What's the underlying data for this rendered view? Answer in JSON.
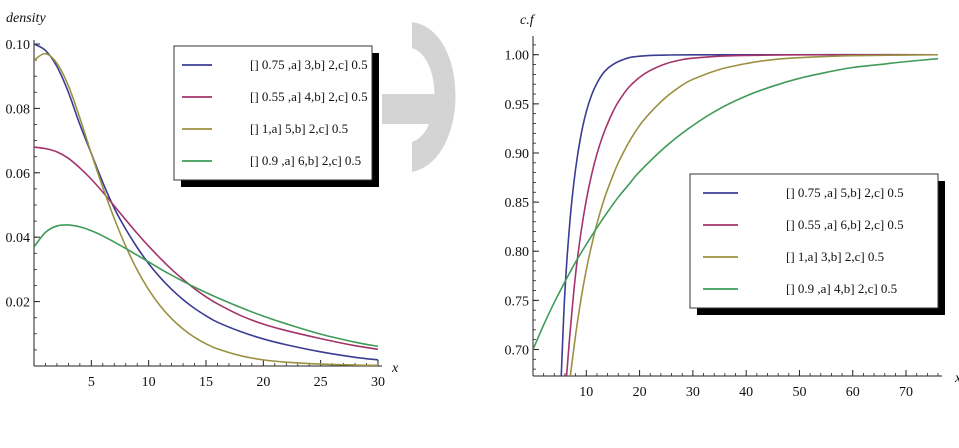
{
  "watermark_color": "#d4d4d4",
  "chart_data": [
    {
      "type": "line",
      "ylabel": "density",
      "xlabel": "x",
      "xlim": [
        0,
        30
      ],
      "ylim": [
        0,
        0.1
      ],
      "xticks": [
        5,
        10,
        15,
        20,
        25,
        30
      ],
      "yticks": [
        0.02,
        0.04,
        0.06,
        0.08,
        0.1
      ],
      "ytick_labels": [
        "0.02",
        "0.04",
        "0.06",
        "0.08",
        "0.10"
      ],
      "legend_position": "top-right",
      "series": [
        {
          "name": "[] 0.75 ,a] 3,b] 2,c] 0.5",
          "color": "#3a3d92",
          "x": [
            0,
            1,
            2,
            3,
            4,
            5,
            6,
            7,
            8,
            9,
            10,
            11,
            12,
            13,
            14,
            15,
            16,
            18,
            20,
            22,
            25,
            28,
            30
          ],
          "y": [
            0.1,
            0.098,
            0.093,
            0.085,
            0.075,
            0.066,
            0.057,
            0.049,
            0.0425,
            0.0368,
            0.0318,
            0.0275,
            0.0238,
            0.0206,
            0.0179,
            0.0156,
            0.0136,
            0.0107,
            0.0084,
            0.0066,
            0.0044,
            0.0027,
            0.0019
          ]
        },
        {
          "name": "[] 0.55 ,a] 4,b] 2,c] 0.5",
          "color": "#a3336b",
          "x": [
            0,
            1,
            2,
            3,
            4,
            5,
            6,
            7,
            8,
            9,
            10,
            11,
            12,
            13,
            14,
            15,
            16,
            18,
            20,
            22,
            25,
            28,
            30
          ],
          "y": [
            0.068,
            0.0675,
            0.0665,
            0.0645,
            0.0615,
            0.058,
            0.054,
            0.0497,
            0.0454,
            0.0412,
            0.0372,
            0.0335,
            0.03,
            0.0269,
            0.024,
            0.0215,
            0.0193,
            0.0157,
            0.013,
            0.011,
            0.0085,
            0.0063,
            0.0052
          ]
        },
        {
          "name": "[] 1,a] 5,b] 2,c] 0.5",
          "color": "#9b9142",
          "x": [
            0,
            1,
            2,
            3,
            4,
            5,
            6,
            7,
            8,
            9,
            10,
            11,
            12,
            13,
            14,
            15,
            16,
            18,
            20,
            22,
            25,
            28,
            30
          ],
          "y": [
            0.095,
            0.097,
            0.094,
            0.087,
            0.077,
            0.066,
            0.0555,
            0.0458,
            0.0372,
            0.0298,
            0.0237,
            0.0187,
            0.0147,
            0.0115,
            0.0089,
            0.0069,
            0.0053,
            0.0032,
            0.0019,
            0.0012,
            0.0006,
            0.0003,
            0.0002
          ]
        },
        {
          "name": "[] 0.9 ,a] 6,b] 2,c] 0.5",
          "color": "#3f9b57",
          "x": [
            0,
            1,
            2,
            3,
            4,
            5,
            6,
            7,
            8,
            9,
            10,
            11,
            12,
            13,
            14,
            15,
            16,
            18,
            20,
            22,
            25,
            28,
            30
          ],
          "y": [
            0.037,
            0.0415,
            0.0435,
            0.0438,
            0.0432,
            0.042,
            0.0404,
            0.0385,
            0.0365,
            0.0344,
            0.0323,
            0.0302,
            0.0282,
            0.0263,
            0.0245,
            0.0228,
            0.0212,
            0.0182,
            0.0155,
            0.0131,
            0.0099,
            0.0074,
            0.0061
          ]
        }
      ]
    },
    {
      "type": "line",
      "ylabel": "c.f",
      "xlabel": "x",
      "xlim": [
        0,
        76
      ],
      "ylim": [
        0.673,
        1.015
      ],
      "xticks": [
        10,
        20,
        30,
        40,
        50,
        60,
        70
      ],
      "yticks": [
        0.7,
        0.75,
        0.8,
        0.85,
        0.9,
        0.95,
        1.0
      ],
      "ytick_labels": [
        "0.70",
        "0.75",
        "0.80",
        "0.85",
        "0.90",
        "0.95",
        "1.00"
      ],
      "legend_position": "bottom-right",
      "series": [
        {
          "name": "[] 0.75 ,a] 5,b] 2,c] 0.5",
          "color": "#3a3d92",
          "x": [
            5.3,
            6,
            7,
            8,
            9,
            10,
            11,
            12,
            13,
            14,
            15,
            16,
            18,
            20,
            22,
            25,
            30,
            40,
            76
          ],
          "y": [
            0.673,
            0.76,
            0.835,
            0.884,
            0.918,
            0.942,
            0.959,
            0.971,
            0.98,
            0.986,
            0.99,
            0.993,
            0.997,
            0.9985,
            0.9993,
            0.9997,
            0.9999,
            1.0,
            1.0
          ]
        },
        {
          "name": "[] 0.55 ,a] 6,b] 2,c] 0.5",
          "color": "#a3336b",
          "x": [
            6.3,
            7,
            8,
            9,
            10,
            11,
            12,
            13,
            14,
            15,
            16,
            18,
            20,
            22,
            25,
            28,
            30,
            35,
            40,
            50,
            76
          ],
          "y": [
            0.673,
            0.72,
            0.777,
            0.819,
            0.852,
            0.878,
            0.899,
            0.916,
            0.93,
            0.942,
            0.952,
            0.967,
            0.977,
            0.984,
            0.991,
            0.995,
            0.9965,
            0.9985,
            0.9993,
            0.9999,
            1.0
          ]
        },
        {
          "name": "[] 1,a] 3,b] 2,c] 0.5",
          "color": "#9b9142",
          "x": [
            7,
            8,
            9,
            10,
            11,
            12,
            13,
            14,
            15,
            16,
            18,
            20,
            22,
            25,
            28,
            30,
            35,
            40,
            45,
            50,
            60,
            76
          ],
          "y": [
            0.673,
            0.715,
            0.751,
            0.781,
            0.806,
            0.828,
            0.847,
            0.863,
            0.877,
            0.89,
            0.911,
            0.928,
            0.941,
            0.957,
            0.969,
            0.975,
            0.985,
            0.991,
            0.995,
            0.997,
            0.999,
            1.0
          ]
        },
        {
          "name": "[] 0.9 ,a] 4,b] 2,c] 0.5",
          "color": "#3f9b57",
          "x": [
            0,
            2,
            4,
            6,
            8,
            10,
            12,
            14,
            16,
            18,
            20,
            25,
            30,
            35,
            40,
            45,
            50,
            55,
            60,
            65,
            70,
            76
          ],
          "y": [
            0.7,
            0.725,
            0.748,
            0.769,
            0.789,
            0.807,
            0.824,
            0.84,
            0.855,
            0.868,
            0.881,
            0.907,
            0.928,
            0.945,
            0.958,
            0.968,
            0.976,
            0.982,
            0.987,
            0.99,
            0.993,
            0.996
          ]
        }
      ]
    }
  ]
}
